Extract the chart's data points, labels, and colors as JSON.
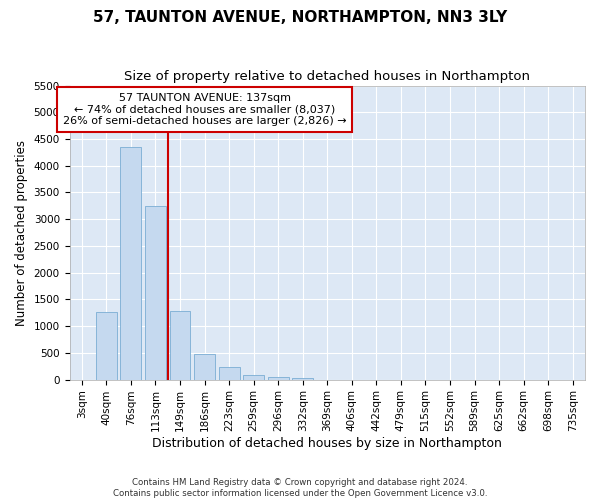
{
  "title": "57, TAUNTON AVENUE, NORTHAMPTON, NN3 3LY",
  "subtitle": "Size of property relative to detached houses in Northampton",
  "xlabel": "Distribution of detached houses by size in Northampton",
  "ylabel": "Number of detached properties",
  "categories": [
    "3sqm",
    "40sqm",
    "76sqm",
    "113sqm",
    "149sqm",
    "186sqm",
    "223sqm",
    "259sqm",
    "296sqm",
    "332sqm",
    "369sqm",
    "406sqm",
    "442sqm",
    "479sqm",
    "515sqm",
    "552sqm",
    "589sqm",
    "625sqm",
    "662sqm",
    "698sqm",
    "735sqm"
  ],
  "values": [
    0,
    1270,
    4350,
    3250,
    1290,
    480,
    230,
    90,
    55,
    25,
    0,
    0,
    0,
    0,
    0,
    0,
    0,
    0,
    0,
    0,
    0
  ],
  "bar_color": "#c5d9ef",
  "bar_edge_color": "#7aadd4",
  "vline_color": "#cc0000",
  "annotation_line1": "57 TAUNTON AVENUE: 137sqm",
  "annotation_line2": "← 74% of detached houses are smaller (8,037)",
  "annotation_line3": "26% of semi-detached houses are larger (2,826) →",
  "annotation_box_color": "#cc0000",
  "ylim": [
    0,
    5500
  ],
  "yticks": [
    0,
    500,
    1000,
    1500,
    2000,
    2500,
    3000,
    3500,
    4000,
    4500,
    5000,
    5500
  ],
  "bg_color": "#dde8f5",
  "grid_color": "#ffffff",
  "footer_line1": "Contains HM Land Registry data © Crown copyright and database right 2024.",
  "footer_line2": "Contains public sector information licensed under the Open Government Licence v3.0.",
  "title_fontsize": 11,
  "subtitle_fontsize": 9.5,
  "tick_fontsize": 7.5,
  "ylabel_fontsize": 8.5,
  "xlabel_fontsize": 9
}
